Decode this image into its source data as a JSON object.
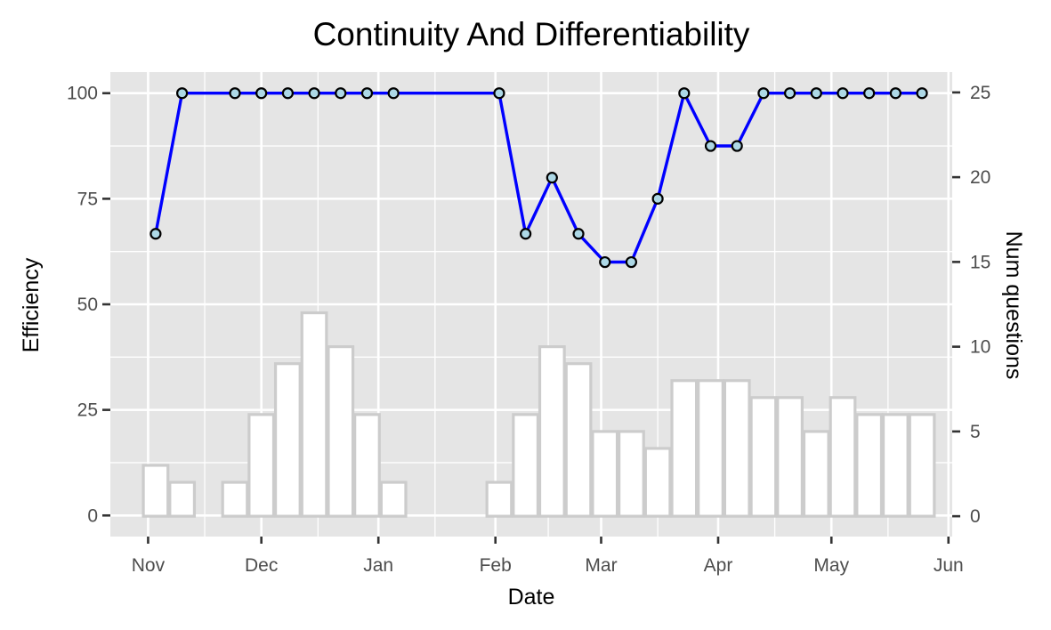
{
  "chart_data": {
    "type": "line",
    "title": "Continuity And Differentiability",
    "xlabel": "Date",
    "ylabel": "Efficiency",
    "y2label": "Num questions",
    "x_ticks": [
      "Nov",
      "Dec",
      "Jan",
      "Feb",
      "Mar",
      "Apr",
      "May",
      "Jun"
    ],
    "y_ticks": [
      0,
      25,
      50,
      75,
      100
    ],
    "y2_ticks": [
      0,
      5,
      10,
      15,
      20,
      25
    ],
    "ylim": [
      -5,
      105
    ],
    "y2lim": [
      -1.2,
      26.2
    ],
    "xlim": [
      "2017-10-22",
      "2018-06-02"
    ],
    "grid": true,
    "colors": {
      "panel": "#e5e5e5",
      "line": "#0000ff",
      "point_fill": "#add8e6",
      "bar_fill": "#ffffff",
      "bar_border": "#cccccc"
    },
    "series": [
      {
        "type": "line",
        "axis": "left",
        "x": [
          "2017-11-03",
          "2017-11-10",
          "2017-11-24",
          "2017-12-01",
          "2017-12-08",
          "2017-12-15",
          "2017-12-22",
          "2017-12-29",
          "2018-01-05",
          "2018-02-02",
          "2018-02-09",
          "2018-02-16",
          "2018-02-23",
          "2018-03-02",
          "2018-03-09",
          "2018-03-16",
          "2018-03-23",
          "2018-03-30",
          "2018-04-06",
          "2018-04-13",
          "2018-04-20",
          "2018-04-27",
          "2018-05-04",
          "2018-05-11",
          "2018-05-18",
          "2018-05-25"
        ],
        "values": [
          66.7,
          100,
          100,
          100,
          100,
          100,
          100,
          100,
          100,
          100,
          66.7,
          80,
          66.7,
          60,
          60,
          75,
          100,
          87.5,
          87.5,
          100,
          100,
          100,
          100,
          100,
          100,
          100
        ]
      },
      {
        "type": "bar",
        "axis": "right",
        "x": [
          "2017-11-03",
          "2017-11-10",
          "2017-11-24",
          "2017-12-01",
          "2017-12-08",
          "2017-12-15",
          "2017-12-22",
          "2017-12-29",
          "2018-01-05",
          "2018-02-02",
          "2018-02-09",
          "2018-02-16",
          "2018-02-23",
          "2018-03-02",
          "2018-03-09",
          "2018-03-16",
          "2018-03-23",
          "2018-03-30",
          "2018-04-06",
          "2018-04-13",
          "2018-04-20",
          "2018-04-27",
          "2018-05-04",
          "2018-05-11",
          "2018-05-18",
          "2018-05-25"
        ],
        "values": [
          3,
          2,
          2,
          6,
          9,
          12,
          10,
          6,
          2,
          2,
          6,
          10,
          9,
          5,
          5,
          4,
          8,
          8,
          8,
          7,
          7,
          5,
          7,
          6,
          6,
          6
        ]
      }
    ]
  }
}
